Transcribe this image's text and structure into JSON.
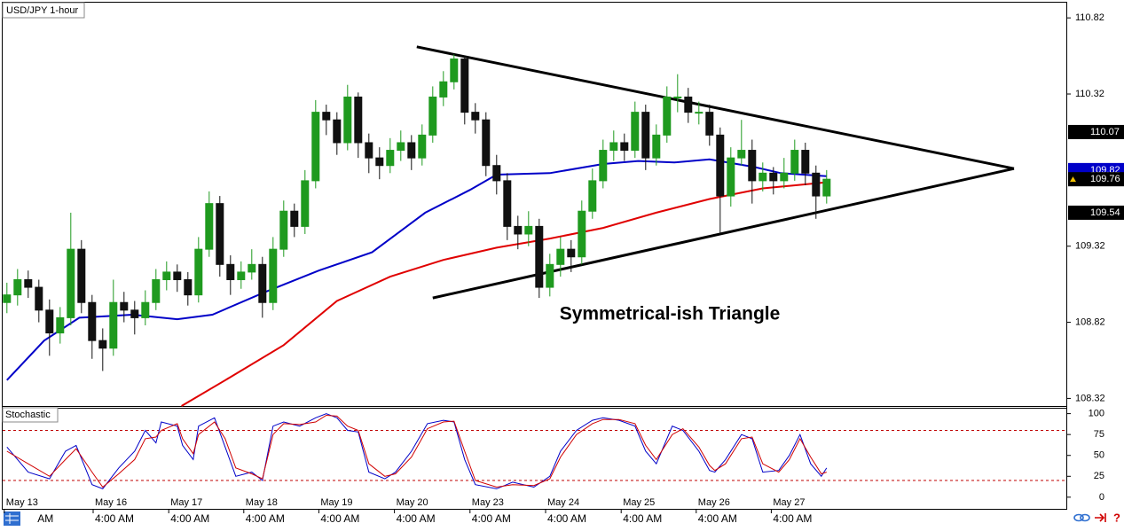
{
  "chart_data": [
    {
      "type": "candlestick",
      "title": "USD/JPY 1-hour",
      "annotation": "Symmetrical-ish Triangle",
      "xlim": [
        -0.4,
        99.6
      ],
      "ylim": [
        108.27,
        110.92
      ],
      "yticks": [
        108.32,
        108.82,
        109.32,
        110.32,
        110.82
      ],
      "price_markers": [
        {
          "value": 110.07,
          "color": "#000000"
        },
        {
          "value": 109.82,
          "color": "#0000c8"
        },
        {
          "value": 109.76,
          "color": "#000000"
        },
        {
          "value": 109.54,
          "color": "#000000"
        }
      ],
      "up_color": "#1f9a1f",
      "down_color": "#111111",
      "open": [
        108.95,
        109.0,
        109.1,
        109.05,
        108.9,
        108.75,
        108.85,
        109.3,
        108.95,
        108.7,
        108.65,
        108.95,
        108.9,
        108.85,
        108.95,
        109.1,
        109.15,
        109.1,
        109.0,
        109.3,
        109.6,
        109.2,
        109.1,
        109.15,
        109.2,
        108.95,
        109.3,
        109.55,
        109.45,
        109.75,
        110.2,
        110.15,
        110.0,
        110.3,
        110.0,
        109.9,
        109.85,
        109.95,
        110.0,
        109.9,
        110.05,
        110.3,
        110.4,
        110.55,
        110.2,
        110.15,
        109.85,
        109.75,
        109.45,
        109.4,
        109.45,
        109.05,
        109.2,
        109.3,
        109.25,
        109.55,
        109.75,
        109.95,
        110.0,
        109.95,
        110.2,
        109.9,
        110.05,
        110.3,
        110.3,
        110.2,
        110.2,
        110.05,
        109.65,
        109.9,
        109.95,
        109.75,
        109.8,
        109.75,
        109.8,
        109.95,
        109.8,
        109.65
      ],
      "high": [
        109.08,
        109.17,
        109.16,
        109.1,
        108.97,
        108.92,
        109.54,
        109.36,
        109.0,
        108.78,
        109.1,
        109.02,
        108.96,
        109.03,
        109.17,
        109.22,
        109.2,
        109.15,
        109.38,
        109.68,
        109.65,
        109.26,
        109.22,
        109.3,
        109.25,
        109.38,
        109.62,
        109.6,
        109.82,
        110.28,
        110.25,
        110.2,
        110.38,
        110.33,
        110.06,
        109.97,
        110.03,
        110.08,
        110.05,
        110.12,
        110.37,
        110.47,
        110.58,
        110.57,
        110.26,
        110.2,
        109.92,
        109.8,
        109.52,
        109.55,
        109.5,
        109.27,
        109.38,
        109.36,
        109.62,
        109.83,
        110.02,
        110.08,
        110.06,
        110.27,
        110.25,
        110.12,
        110.37,
        110.45,
        110.36,
        110.27,
        110.25,
        110.1,
        109.97,
        110.15,
        110.02,
        109.87,
        109.84,
        109.9,
        110.02,
        110.0,
        109.85,
        109.82
      ],
      "low": [
        108.88,
        108.93,
        108.98,
        108.82,
        108.6,
        108.68,
        108.8,
        108.88,
        108.58,
        108.5,
        108.6,
        108.82,
        108.74,
        108.8,
        108.9,
        109.03,
        109.02,
        108.93,
        108.95,
        109.25,
        109.12,
        109.0,
        109.04,
        109.1,
        108.85,
        108.9,
        109.25,
        109.38,
        109.4,
        109.7,
        110.05,
        109.92,
        109.95,
        109.9,
        109.8,
        109.76,
        109.8,
        109.88,
        109.82,
        109.85,
        110.0,
        110.24,
        110.35,
        110.12,
        110.06,
        109.78,
        109.66,
        109.36,
        109.3,
        109.32,
        108.98,
        108.99,
        109.12,
        109.15,
        109.2,
        109.5,
        109.7,
        109.88,
        109.88,
        109.9,
        109.82,
        109.85,
        110.0,
        110.2,
        110.13,
        110.12,
        109.98,
        109.4,
        109.58,
        109.85,
        109.6,
        109.68,
        109.66,
        109.7,
        109.75,
        109.72,
        109.5,
        109.6
      ],
      "close": [
        109.0,
        109.1,
        109.05,
        108.9,
        108.75,
        108.85,
        109.3,
        108.95,
        108.7,
        108.65,
        108.95,
        108.9,
        108.85,
        108.95,
        109.1,
        109.15,
        109.1,
        109.0,
        109.3,
        109.6,
        109.2,
        109.1,
        109.15,
        109.2,
        108.95,
        109.3,
        109.55,
        109.45,
        109.75,
        110.2,
        110.15,
        110.0,
        110.3,
        110.0,
        109.9,
        109.85,
        109.95,
        110.0,
        109.9,
        110.05,
        110.3,
        110.4,
        110.55,
        110.2,
        110.15,
        109.85,
        109.75,
        109.45,
        109.4,
        109.45,
        109.05,
        109.2,
        109.3,
        109.25,
        109.55,
        109.75,
        109.95,
        110.0,
        109.95,
        110.2,
        109.9,
        110.05,
        110.3,
        110.3,
        110.2,
        110.2,
        110.05,
        109.65,
        109.9,
        109.95,
        109.75,
        109.8,
        109.75,
        109.8,
        109.95,
        109.8,
        109.65,
        109.76
      ],
      "lines": [
        {
          "color": "#0000c8",
          "x": [
            0,
            3.5,
            6.8,
            11.8,
            16,
            19.3,
            24.3,
            29.3,
            34.3,
            39.3,
            43.5,
            46,
            51,
            56,
            59.3,
            62.7,
            66,
            70.2,
            72.7,
            77
          ],
          "values": [
            108.44,
            108.7,
            108.85,
            108.87,
            108.84,
            108.87,
            109.02,
            109.16,
            109.28,
            109.54,
            109.69,
            109.79,
            109.8,
            109.86,
            109.88,
            109.87,
            109.89,
            109.84,
            109.8,
            109.78
          ]
        },
        {
          "color": "#e00000",
          "x": [
            16.4,
            21,
            26,
            31,
            36,
            41,
            46,
            51,
            56,
            61,
            66,
            71,
            77
          ],
          "values": [
            108.27,
            108.46,
            108.67,
            108.96,
            109.12,
            109.23,
            109.31,
            109.37,
            109.44,
            109.54,
            109.63,
            109.7,
            109.74
          ]
        }
      ],
      "trendlines": [
        {
          "color": "#000000",
          "x": [
            38.5,
            94.6
          ],
          "values": [
            110.63,
            109.83
          ]
        },
        {
          "color": "#000000",
          "x": [
            40,
            94.6
          ],
          "values": [
            108.98,
            109.83
          ]
        }
      ]
    },
    {
      "type": "stochastic",
      "title": "Stochastic",
      "xlim": [
        -0.4,
        99.6
      ],
      "ylim": [
        -15,
        107
      ],
      "yticks": [
        0,
        25,
        50,
        75,
        100
      ],
      "levels": [
        20,
        80
      ],
      "level_color": "#c00000",
      "x": [
        0,
        2,
        4,
        5.5,
        6.5,
        8,
        9,
        10.5,
        12,
        13,
        14,
        14.5,
        16,
        16.5,
        17.5,
        18,
        19.5,
        20.5,
        21.5,
        23,
        24,
        25,
        26,
        27.5,
        29,
        30,
        31,
        32,
        33,
        34,
        35.5,
        36.5,
        38,
        39.5,
        41,
        42,
        43,
        44,
        46,
        47.5,
        49.5,
        51,
        52,
        53.5,
        55,
        56,
        57.5,
        59,
        60,
        61,
        62.5,
        63.5,
        65,
        66,
        66.5,
        67.5,
        69,
        70,
        71,
        72.5,
        73.5,
        74.5,
        75.5,
        76.5,
        77
      ],
      "series": [
        {
          "color": "#0000c8",
          "values": [
            60,
            30,
            22,
            55,
            62,
            15,
            10,
            35,
            55,
            80,
            65,
            90,
            85,
            62,
            45,
            85,
            95,
            60,
            25,
            30,
            20,
            85,
            90,
            85,
            95,
            100,
            95,
            80,
            78,
            30,
            22,
            30,
            55,
            88,
            92,
            90,
            45,
            15,
            10,
            18,
            12,
            25,
            55,
            80,
            92,
            95,
            92,
            85,
            55,
            40,
            85,
            80,
            55,
            32,
            30,
            45,
            75,
            70,
            30,
            32,
            50,
            75,
            40,
            25,
            35
          ]
        },
        {
          "color": "#d00000",
          "values": [
            55,
            40,
            25,
            45,
            58,
            30,
            12,
            28,
            45,
            70,
            72,
            80,
            88,
            70,
            52,
            75,
            90,
            70,
            35,
            28,
            22,
            75,
            88,
            87,
            90,
            98,
            97,
            85,
            80,
            40,
            25,
            28,
            48,
            82,
            90,
            91,
            55,
            20,
            12,
            15,
            14,
            22,
            48,
            75,
            88,
            93,
            93,
            88,
            62,
            45,
            75,
            82,
            60,
            38,
            32,
            40,
            70,
            72,
            40,
            30,
            45,
            70,
            48,
            28,
            30
          ]
        }
      ],
      "xticks": [
        {
          "value": -0.25,
          "label": "May 13"
        },
        {
          "value": 8.1,
          "label": "May 16"
        },
        {
          "value": 15.2,
          "label": "May 17"
        },
        {
          "value": 22.25,
          "label": "May 18"
        },
        {
          "value": 29.3,
          "label": "May 19"
        },
        {
          "value": 36.4,
          "label": "May 20"
        },
        {
          "value": 43.5,
          "label": "May 23"
        },
        {
          "value": 50.6,
          "label": "May 24"
        },
        {
          "value": 57.7,
          "label": "May 25"
        },
        {
          "value": 64.75,
          "label": "May 26"
        },
        {
          "value": 71.8,
          "label": "May 27"
        }
      ],
      "xticks_time": [
        {
          "value": 2.7,
          "label": "AM"
        },
        {
          "value": 8.1,
          "label": "4:00 AM"
        },
        {
          "value": 15.2,
          "label": "4:00 AM"
        },
        {
          "value": 22.25,
          "label": "4:00 AM"
        },
        {
          "value": 29.3,
          "label": "4:00 AM"
        },
        {
          "value": 36.4,
          "label": "4:00 AM"
        },
        {
          "value": 43.5,
          "label": "4:00 AM"
        },
        {
          "value": 50.6,
          "label": "4:00 AM"
        },
        {
          "value": 57.7,
          "label": "4:00 AM"
        },
        {
          "value": 64.75,
          "label": "4:00 AM"
        },
        {
          "value": 71.8,
          "label": "4:00 AM"
        }
      ]
    }
  ]
}
